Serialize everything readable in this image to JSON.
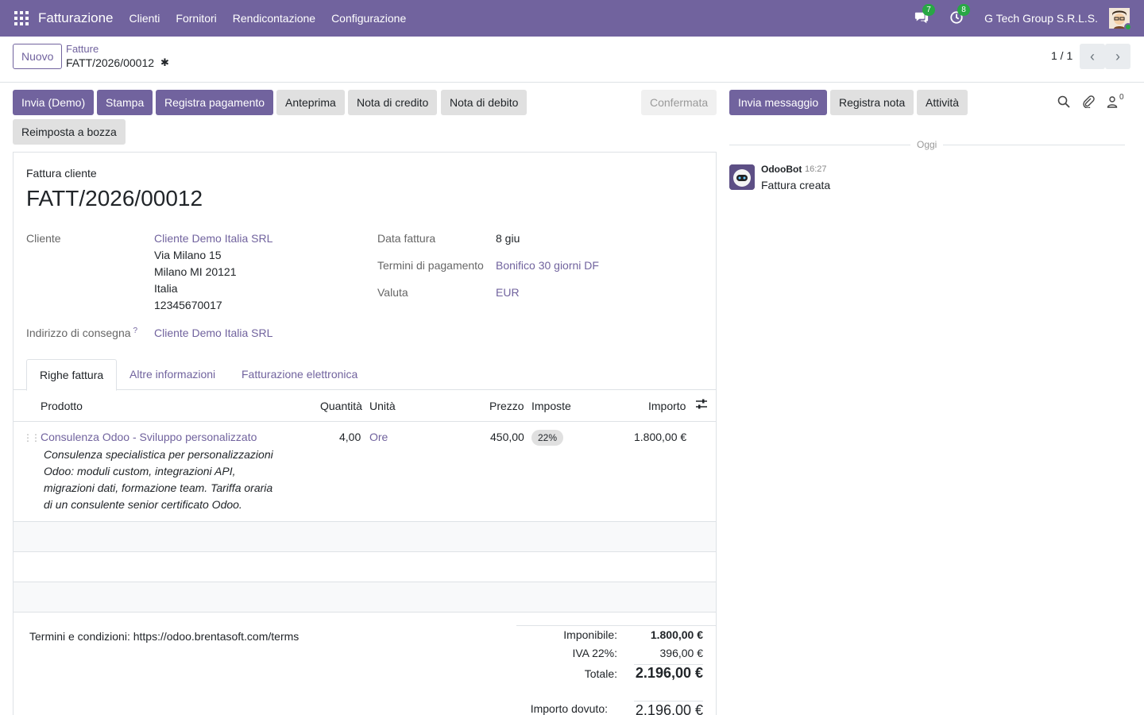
{
  "navbar": {
    "brand": "Fatturazione",
    "menu": [
      "Clienti",
      "Fornitori",
      "Rendicontazione",
      "Configurazione"
    ],
    "messages_count": "7",
    "activities_count": "8",
    "company": "G Tech Group S.R.L.S."
  },
  "control": {
    "new_label": "Nuovo",
    "breadcrumb_parent": "Fatture",
    "breadcrumb_current": "FATT/2026/00012",
    "pager": "1 / 1"
  },
  "actions": {
    "send": "Invia (Demo)",
    "print": "Stampa",
    "register_payment": "Registra pagamento",
    "preview": "Anteprima",
    "credit_note": "Nota di credito",
    "debit_note": "Nota di debito",
    "reset_draft": "Reimposta a bozza",
    "status": "Confermata"
  },
  "form": {
    "doc_type": "Fattura cliente",
    "doc_name": "FATT/2026/00012",
    "customer_label": "Cliente",
    "customer_name": "Cliente Demo Italia SRL",
    "customer_street": "Via Milano 15",
    "customer_city": "Milano MI 20121",
    "customer_country": "Italia",
    "customer_vat": "12345670017",
    "delivery_label": "Indirizzo di consegna",
    "delivery_help": "?",
    "delivery_value": "Cliente Demo Italia SRL",
    "invoice_date_label": "Data fattura",
    "invoice_date": "8 giu",
    "payment_terms_label": "Termini di pagamento",
    "payment_terms": "Bonifico 30 giorni DF",
    "currency_label": "Valuta",
    "currency": "EUR"
  },
  "tabs": [
    "Righe fattura",
    "Altre informazioni",
    "Fatturazione elettronica"
  ],
  "lines": {
    "headers": {
      "product": "Prodotto",
      "qty": "Quantità",
      "uom": "Unità",
      "price": "Prezzo",
      "taxes": "Imposte",
      "amount": "Importo"
    },
    "rows": [
      {
        "product": "Consulenza Odoo - Sviluppo personalizzato",
        "qty": "4,00",
        "uom": "Ore",
        "price": "450,00",
        "tax": "22%",
        "amount": "1.800,00 €",
        "description": "Consulenza specialistica per personalizzazioni Odoo: moduli custom, integrazioni API, migrazioni dati, formazione team. Tariffa oraria di un consulente senior certificato Odoo."
      }
    ]
  },
  "footer": {
    "terms": "Termini e condizioni: https://odoo.brentasoft.com/terms",
    "untaxed_label": "Imponibile:",
    "untaxed": "1.800,00 €",
    "vat_label": "IVA 22%:",
    "vat": "396,00 €",
    "total_label": "Totale:",
    "total": "2.196,00 €",
    "due_label": "Importo dovuto:",
    "due": "2.196,00 €"
  },
  "chatter": {
    "send_message": "Invia messaggio",
    "log_note": "Registra nota",
    "activities": "Attività",
    "followers_count": "0",
    "day_label": "Oggi",
    "author": "OdooBot",
    "time": "16:27",
    "body": "Fattura creata"
  },
  "colors": {
    "brand": "#71639e",
    "badge": "#28a745"
  }
}
